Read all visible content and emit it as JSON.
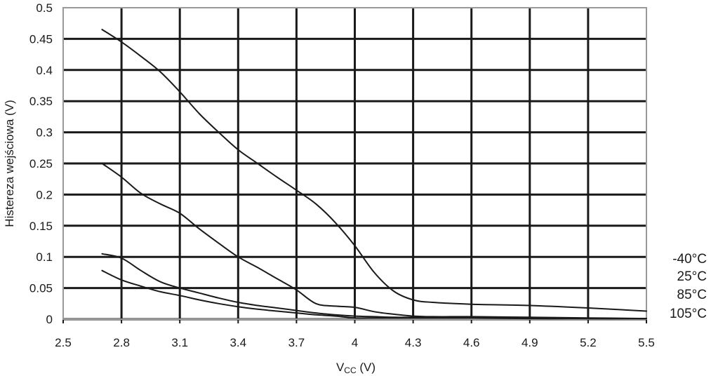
{
  "chart_data": {
    "type": "line",
    "title": "",
    "xlabel": "V",
    "xlabel_sub": "CC",
    "xlabel_unit": " (V)",
    "ylabel": "Histereza wejściowa (V)",
    "xlim": [
      2.5,
      5.5
    ],
    "ylim": [
      0,
      0.5
    ],
    "x_ticks": [
      2.5,
      2.8,
      3.1,
      3.4,
      3.7,
      4.0,
      4.3,
      4.6,
      4.9,
      5.2,
      5.5
    ],
    "x_tick_labels": [
      "2.5",
      "2.8",
      "3.1",
      "3.4",
      "3.7",
      "4",
      "4.3",
      "4.6",
      "4.9",
      "5.2",
      "5.5"
    ],
    "y_ticks": [
      0,
      0.05,
      0.1,
      0.15,
      0.2,
      0.25,
      0.3,
      0.35,
      0.4,
      0.45,
      0.5
    ],
    "y_tick_labels": [
      "0",
      "0.05",
      "0.1",
      "0.15",
      "0.2",
      "0.25",
      "0.3",
      "0.35",
      "0.4",
      "0.45",
      "0.5"
    ],
    "grid": true,
    "legend_placement": "right",
    "colors": {
      "line": "#1a1a1a",
      "grid": "#1a1a1a",
      "frame": "#9a9a9a"
    },
    "series": [
      {
        "name": "-40°C",
        "x": [
          2.7,
          2.8,
          2.9,
          3.0,
          3.1,
          3.2,
          3.3,
          3.4,
          3.5,
          3.6,
          3.7,
          3.8,
          3.9,
          4.0,
          4.1,
          4.2,
          4.3,
          4.4,
          4.6,
          4.9,
          5.2,
          5.5
        ],
        "y": [
          0.465,
          0.445,
          0.422,
          0.397,
          0.365,
          0.33,
          0.3,
          0.272,
          0.25,
          0.228,
          0.207,
          0.185,
          0.155,
          0.118,
          0.075,
          0.045,
          0.031,
          0.027,
          0.024,
          0.022,
          0.018,
          0.013
        ]
      },
      {
        "name": "25°C",
        "x": [
          2.7,
          2.8,
          2.9,
          3.0,
          3.1,
          3.2,
          3.3,
          3.4,
          3.5,
          3.6,
          3.7,
          3.8,
          3.9,
          4.0,
          4.1,
          4.2,
          4.3,
          4.4,
          4.6,
          4.9,
          5.2,
          5.5
        ],
        "y": [
          0.25,
          0.228,
          0.202,
          0.185,
          0.17,
          0.145,
          0.122,
          0.1,
          0.083,
          0.065,
          0.047,
          0.025,
          0.021,
          0.019,
          0.012,
          0.008,
          0.005,
          0.004,
          0.004,
          0.003,
          0.002,
          0.001
        ]
      },
      {
        "name": "85°C",
        "x": [
          2.7,
          2.8,
          2.9,
          3.0,
          3.1,
          3.2,
          3.3,
          3.4,
          3.5,
          3.6,
          3.7,
          3.8,
          3.9,
          4.0,
          4.1,
          4.2,
          4.3,
          4.4,
          4.6,
          4.9,
          5.2,
          5.5
        ],
        "y": [
          0.105,
          0.098,
          0.078,
          0.06,
          0.05,
          0.042,
          0.034,
          0.027,
          0.022,
          0.018,
          0.014,
          0.01,
          0.007,
          0.005,
          0.004,
          0.003,
          0.003,
          0.003,
          0.003,
          0.002,
          0.001,
          0.001
        ]
      },
      {
        "name": "105°C",
        "x": [
          2.7,
          2.8,
          2.9,
          3.0,
          3.1,
          3.2,
          3.3,
          3.4,
          3.5,
          3.6,
          3.7,
          3.8,
          3.9,
          4.0,
          4.1,
          4.2,
          4.3,
          4.4,
          4.6,
          4.9,
          5.2,
          5.5
        ],
        "y": [
          0.078,
          0.063,
          0.053,
          0.044,
          0.038,
          0.031,
          0.025,
          0.02,
          0.016,
          0.013,
          0.01,
          0.007,
          0.005,
          0.002,
          0.002,
          0.002,
          0.002,
          0.002,
          0.002,
          0.001,
          0.001,
          0.001
        ]
      }
    ]
  }
}
